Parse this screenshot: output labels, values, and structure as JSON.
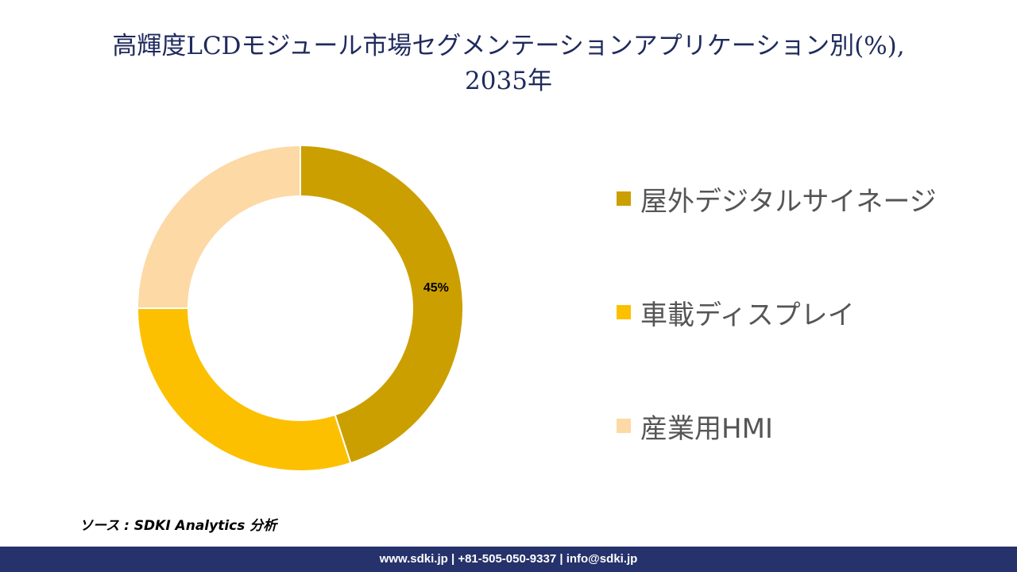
{
  "title": {
    "line1": "高輝度LCDモジュール市場セグメンテーションアプリケーション別(%),",
    "line2": "2035年"
  },
  "chart_data": {
    "type": "pie",
    "variant": "donut",
    "categories": [
      "屋外デジタルサイネージ",
      "車載ディスプレイ",
      "産業用HMI"
    ],
    "values": [
      45,
      30,
      25
    ],
    "data_labels": [
      "45%",
      "",
      ""
    ],
    "colors": [
      "#cc9f00",
      "#fcc000",
      "#fdd9a5"
    ],
    "legend_position": "right",
    "start_angle_deg": 0,
    "direction": "clockwise"
  },
  "legend": {
    "items": [
      {
        "label": "屋外デジタルサイネージ",
        "color": "#cc9f00"
      },
      {
        "label": "車載ディスプレイ",
        "color": "#fcc000"
      },
      {
        "label": "産業用HMI",
        "color": "#fdd9a5"
      }
    ]
  },
  "source": "ソース : SDKI Analytics 分析",
  "footer": "www.sdki.jp | +81-505-050-9337 | info@sdki.jp"
}
